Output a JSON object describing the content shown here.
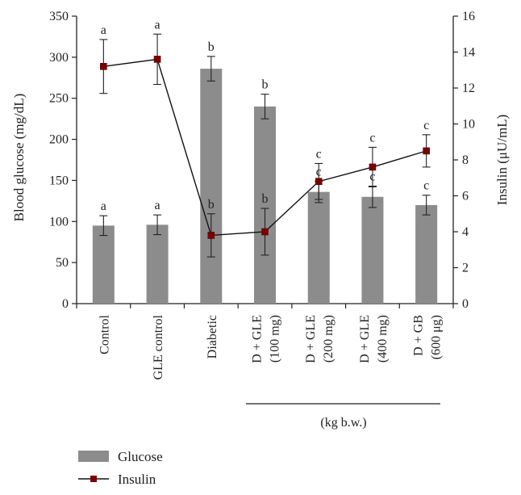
{
  "chart_data": {
    "type": "bar+line",
    "categories": [
      [
        "Control"
      ],
      [
        "GLE control"
      ],
      [
        "Diabetic"
      ],
      [
        "D + GLE",
        "(100 mg)"
      ],
      [
        "D + GLE",
        "(200 mg)"
      ],
      [
        "D + GLE",
        "(400 mg)"
      ],
      [
        "D + GB",
        "(600 μg)"
      ]
    ],
    "group_label": "(kg b.w.)",
    "bars": {
      "name": "Glucose",
      "axis": "left",
      "color": "#8c8c8c",
      "values": [
        95,
        96,
        286,
        240,
        136,
        130,
        120
      ],
      "errors": [
        12,
        12,
        15,
        15,
        13,
        13,
        12
      ],
      "significance": [
        "a",
        "a",
        "b",
        "b",
        "c",
        "c",
        "c"
      ]
    },
    "line": {
      "name": "Insulin",
      "axis": "right",
      "color": "#7a0000",
      "values": [
        13.2,
        13.6,
        3.8,
        4.0,
        6.8,
        7.6,
        8.5
      ],
      "errors": [
        1.5,
        1.4,
        1.2,
        1.3,
        1.0,
        1.1,
        0.9
      ],
      "significance": [
        "a",
        "a",
        "b",
        "b",
        "c",
        "c",
        "c"
      ]
    },
    "left_axis": {
      "label": "Blood glucose (mg/dL)",
      "ylim": [
        0,
        350
      ],
      "ticks": [
        0,
        50,
        100,
        150,
        200,
        250,
        300,
        350
      ]
    },
    "right_axis": {
      "label": "Insulin (μU/mL)",
      "ylim": [
        0,
        16
      ],
      "ticks": [
        0,
        2,
        4,
        6,
        8,
        10,
        12,
        14,
        16
      ]
    },
    "legend": {
      "placement": "bottom-left",
      "entries": [
        "Glucose",
        "Insulin"
      ]
    }
  }
}
